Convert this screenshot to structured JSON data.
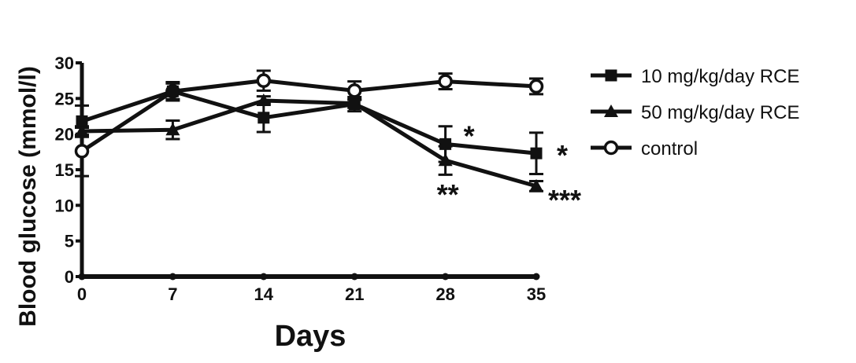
{
  "chart_data": {
    "type": "line",
    "title": "",
    "xlabel": "Days",
    "ylabel": "Blood glucose (mmol/l)",
    "x": [
      0,
      7,
      14,
      21,
      28,
      35
    ],
    "x_tick_labels": [
      "0",
      "7",
      "14",
      "21",
      "28",
      "35"
    ],
    "y_tick_labels": [
      "0",
      "5",
      "10",
      "15",
      "20",
      "25",
      "30"
    ],
    "xlim": [
      0,
      35
    ],
    "ylim": [
      0,
      30
    ],
    "grid": false,
    "legend_position": "right",
    "series": [
      {
        "name": "10 mg/kg/day RCE",
        "marker": "square",
        "values": [
          21.8,
          26.0,
          22.3,
          24.2,
          18.6,
          17.3
        ],
        "errors": [
          2.2,
          1.1,
          2.0,
          1.0,
          2.5,
          2.9
        ]
      },
      {
        "name": "50 mg/kg/day RCE",
        "marker": "triangle",
        "values": [
          20.4,
          20.6,
          24.7,
          24.3,
          16.3,
          12.7
        ],
        "errors": [
          0.5,
          1.3,
          0.6,
          0.6,
          2.0,
          0.7
        ]
      },
      {
        "name": "control",
        "marker": "circle",
        "values": [
          17.6,
          26.0,
          27.5,
          26.1,
          27.4,
          26.7
        ],
        "errors": [
          3.5,
          1.3,
          1.4,
          1.3,
          1.1,
          1.1
        ]
      }
    ],
    "annotations": [
      {
        "x": 28,
        "y": 18.6,
        "text": "*"
      },
      {
        "x": 35,
        "y": 17.3,
        "text": "*"
      },
      {
        "x": 28,
        "y": 16.3,
        "text": "**"
      },
      {
        "x": 35,
        "y": 12.7,
        "text": "***"
      }
    ]
  }
}
